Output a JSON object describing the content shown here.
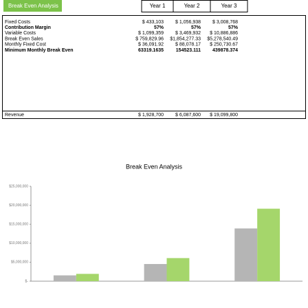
{
  "header": {
    "title": "Break Even Analysis",
    "years": [
      "Year 1",
      "Year 2",
      "Year 3"
    ]
  },
  "table": {
    "rows": [
      [
        "Fixed Costs",
        "$ 433,103",
        "$ 1,056,938",
        "$ 3,008,768"
      ],
      [
        "Contribution Margin",
        "57%",
        "57%",
        "57%"
      ],
      [
        "Variable Costs",
        "$ 1,099,359",
        "$ 3,469,932",
        "$ 10,886,886"
      ],
      [
        "Break Even Sales",
        "$ 759,829.96",
        "$1,854,277.33",
        "$5,278,540.49"
      ],
      [
        "Monthly Fixed Cost",
        "$ 36,091.92",
        "$ 88,078.17",
        "$ 250,730.67"
      ],
      [
        "Minimum Monthly Break Even",
        "63319.1635",
        "154523.111",
        "439878.374"
      ],
      [
        "Revenue",
        "$ 1,928,700",
        "$ 6,087,600",
        "$ 19,099,800"
      ]
    ]
  },
  "chart_data": {
    "type": "bar",
    "title": "Break Even Analysis",
    "categories": [
      null,
      null,
      null
    ],
    "series": [
      {
        "color": "#b5b5b5",
        "values": [
          1532462,
          4526870,
          13895654
        ]
      },
      {
        "color": "#a5d66b",
        "values": [
          1928700,
          6087600,
          19099800
        ]
      }
    ],
    "ylim": [
      0,
      25000000
    ],
    "yticks": [
      {
        "value": 0,
        "label": "$-"
      },
      {
        "value": 5000000,
        "label": "$5,000,000"
      },
      {
        "value": 10000000,
        "label": "$10,000,000"
      },
      {
        "value": 15000000,
        "label": "$15,000,000"
      },
      {
        "value": 20000000,
        "label": "$20,000,000"
      },
      {
        "value": 25000000,
        "label": "$25,000,000"
      }
    ]
  }
}
